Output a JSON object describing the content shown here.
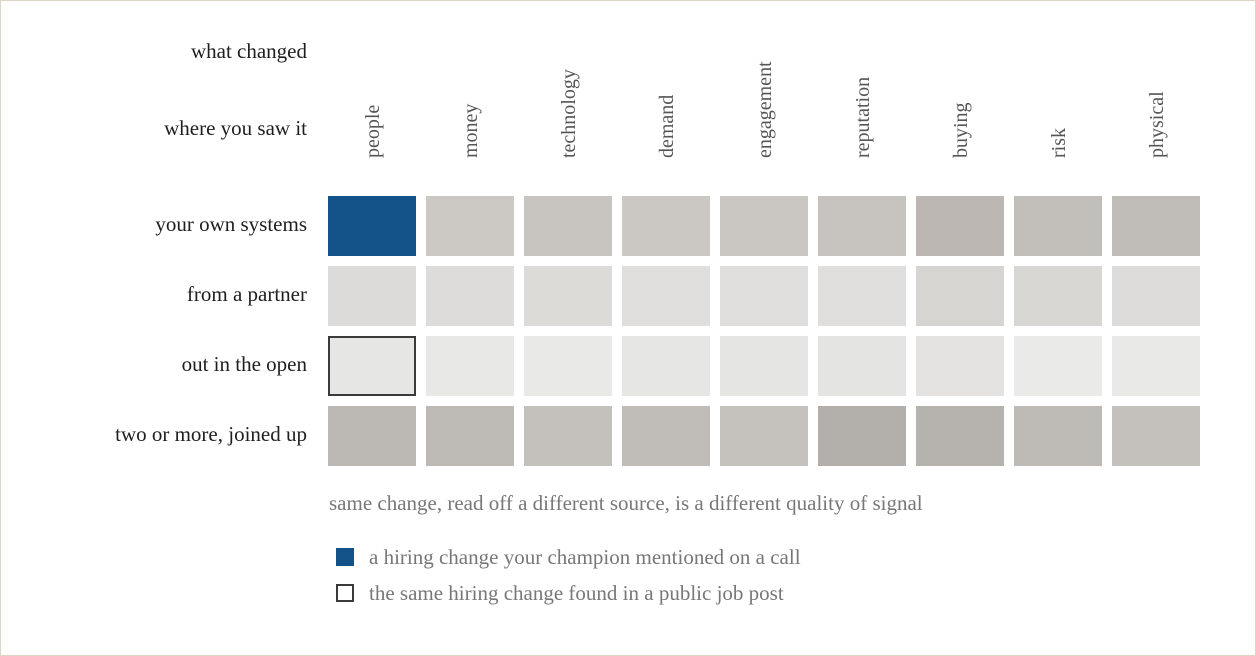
{
  "titles": {
    "columns_title": "what changed",
    "rows_title": "where you saw it"
  },
  "columns": [
    "people",
    "money",
    "technology",
    "demand",
    "engagement",
    "reputation",
    "buying",
    "risk",
    "physical"
  ],
  "rows": [
    "your own systems",
    "from a partner",
    "out in the open",
    "two or more, joined up"
  ],
  "cells": [
    [
      "#135189",
      "#ccc9c5",
      "#c8c4c0",
      "#cbc8c4",
      "#cac7c3",
      "#c6c2be",
      "#bcb7b2",
      "#c2beb9",
      "#c0bcb7"
    ],
    [
      "#dcdbd9",
      "#dddcda",
      "#dcdbd8",
      "#dfdedc",
      "#e0dfdd",
      "#dfdedc",
      "#d7d5d2",
      "#d9d7d4",
      "#dddcda"
    ],
    [
      "#e6e6e5",
      "#e8e8e7",
      "#e9e9e8",
      "#e6e6e5",
      "#e5e5e4",
      "#e4e4e3",
      "#e4e3e1",
      "#eaeae9",
      "#e9e9e8"
    ],
    [
      "#bcb8b3",
      "#bdb9b4",
      "#c4c0bb",
      "#c0bcb7",
      "#c5c1bc",
      "#b3afaa",
      "#b6b2ad",
      "#bebab5",
      "#c4c0bc"
    ]
  ],
  "highlight": {
    "solid": {
      "row": 0,
      "col": 0,
      "color": "#135189"
    },
    "outlined": {
      "row": 2,
      "col": 0,
      "border": "#3a3a3a"
    }
  },
  "caption": "same change, read off a different source, is a different quality of signal",
  "legend": [
    {
      "label": "a hiring change your champion mentioned on a call",
      "type": "solid",
      "color": "#135189"
    },
    {
      "label": "the same hiring change found in a public job post",
      "type": "outline",
      "color": "#3a3a3a"
    }
  ]
}
